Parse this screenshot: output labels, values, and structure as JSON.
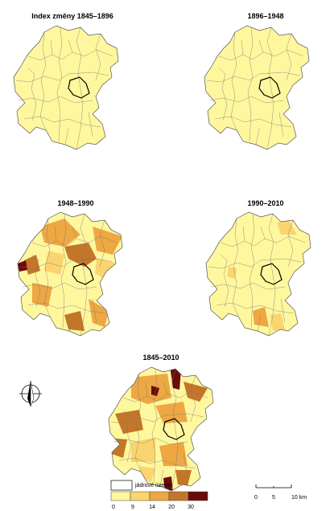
{
  "maps": [
    {
      "title": "Index změny 1845–1896"
    },
    {
      "title": "1896–1948"
    },
    {
      "title": "1948–1990"
    },
    {
      "title": "1990–2010"
    },
    {
      "title": "1845–2010"
    }
  ],
  "legend": {
    "core_label": "jádrové území",
    "colors": [
      "#fff79e",
      "#fad46e",
      "#eea743",
      "#c47628",
      "#6a0b0c"
    ],
    "breaks": [
      0,
      9,
      14,
      20,
      30
    ]
  },
  "scale_bar": {
    "ticks": [
      0,
      5,
      {
        "value": 10,
        "label": "10 km"
      }
    ]
  }
}
